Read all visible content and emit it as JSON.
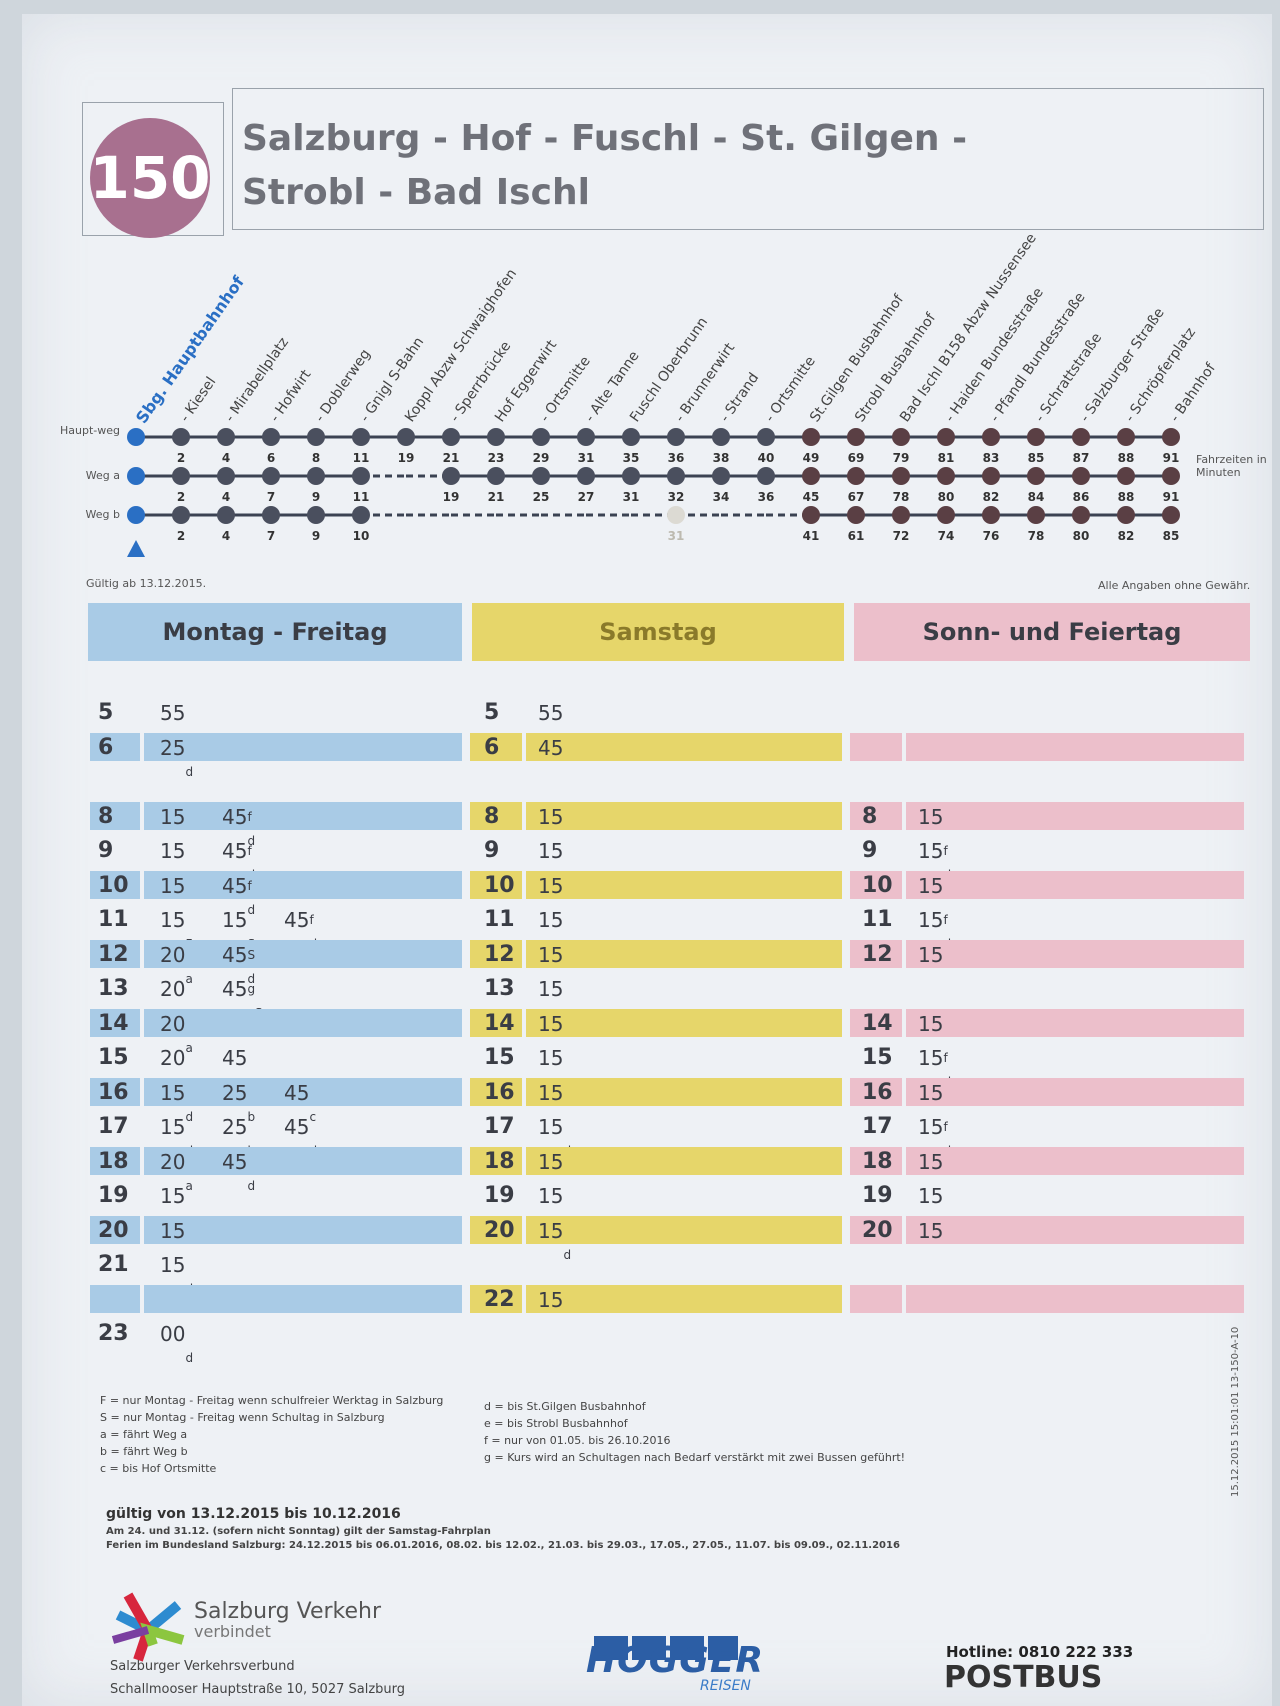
{
  "route_number": "150",
  "title_line1": "Salzburg - Hof - Fuschl - St. Gilgen -",
  "title_line2": "Strobl - Bad Ischl",
  "stops": [
    "Sbg. Hauptbahnhof",
    "- Kiesel",
    "- Mirabellplatz",
    "- Hofwirt",
    "- Doblerweg",
    "- Gnigl S-Bahn",
    "Koppl Abzw Schwaighofen",
    "- Sperrbrücke",
    "Hof Eggerwirt",
    "- Ortsmitte",
    "- Alte Tanne",
    "Fuschl Oberbrunn",
    "- Brunnerwirt",
    "- Strand",
    "- Ortsmitte",
    "St.Gilgen Busbahnhof",
    "Strobl Busbahnhof",
    "Bad Ischl B158 Abzw Nussensee",
    "- Haiden Bundesstraße",
    "- Pfandl Bundesstraße",
    "- Schrattstraße",
    "- Salzburger Straße",
    "- Schröpferplatz",
    "- Bahnhof"
  ],
  "route_rows": [
    {
      "label": "Haupt-weg",
      "times": [
        "",
        "2",
        "4",
        "6",
        "8",
        "11",
        "19",
        "21",
        "23",
        "29",
        "31",
        "35",
        "36",
        "38",
        "40",
        "49",
        "69",
        "79",
        "81",
        "83",
        "85",
        "87",
        "88",
        "91"
      ]
    },
    {
      "label": "Weg a",
      "times": [
        "",
        "2",
        "4",
        "7",
        "9",
        "11",
        "",
        "19",
        "21",
        "25",
        "27",
        "31",
        "32",
        "34",
        "36",
        "45",
        "67",
        "78",
        "80",
        "82",
        "84",
        "86",
        "88",
        "91"
      ]
    },
    {
      "label": "Weg b",
      "times": [
        "",
        "2",
        "4",
        "7",
        "9",
        "10",
        "",
        "",
        "",
        "",
        "",
        "",
        "31",
        "",
        "",
        "41",
        "61",
        "72",
        "74",
        "76",
        "78",
        "80",
        "82",
        "85"
      ]
    }
  ],
  "fahrzeiten_label": "Fahrzeiten in Minuten",
  "gueltig_ab": "Gültig ab 13.12.2015.",
  "ohne_gewaehr": "Alle Angaben ohne Gewähr.",
  "columns": {
    "weekday": "Montag - Freitag",
    "saturday": "Samstag",
    "sunday": "Sonn- und Feiertag"
  },
  "colors": {
    "weekday": "#a9cbe6",
    "saturday": "#e6d66a",
    "sunday": "#ecbfcb",
    "badge": "#a8708f",
    "route_line": "#3b4252",
    "first_stop": "#2a6fc4"
  },
  "weekday_rows": [
    {
      "h": "5",
      "m": [
        {
          "t": "55"
        }
      ]
    },
    {
      "h": "6",
      "m": [
        {
          "t": "25",
          "sub": "d"
        }
      ]
    },
    {
      "h": "",
      "m": []
    },
    {
      "h": "8",
      "m": [
        {
          "t": "15"
        },
        {
          "t": "45",
          "sup": "f",
          "sub": "d"
        }
      ]
    },
    {
      "h": "9",
      "m": [
        {
          "t": "15"
        },
        {
          "t": "45",
          "sup": "f",
          "sub": "d"
        }
      ]
    },
    {
      "h": "10",
      "m": [
        {
          "t": "15"
        },
        {
          "t": "45",
          "sup": "f",
          "sub": "d"
        }
      ]
    },
    {
      "h": "11",
      "m": [
        {
          "t": "15",
          "sub": "F"
        },
        {
          "t": "15",
          "sub": "S"
        },
        {
          "t": "45",
          "sup": "f",
          "sub": "d"
        }
      ]
    },
    {
      "h": "12",
      "m": [
        {
          "t": "20",
          "sub": "a"
        },
        {
          "t": "45",
          "sup": "S",
          "sub": "d"
        }
      ]
    },
    {
      "h": "13",
      "m": [
        {
          "t": "20",
          "sub": "a"
        },
        {
          "t": "45",
          "sup": "g",
          "sub": "eS"
        }
      ]
    },
    {
      "h": "14",
      "m": [
        {
          "t": "20",
          "sub": "a"
        }
      ]
    },
    {
      "h": "15",
      "m": [
        {
          "t": "20",
          "sub": "a"
        },
        {
          "t": "45",
          "sub": "c"
        }
      ]
    },
    {
      "h": "16",
      "m": [
        {
          "t": "15",
          "sub": "d"
        },
        {
          "t": "25",
          "sub": "b"
        },
        {
          "t": "45",
          "sub": "c"
        }
      ]
    },
    {
      "h": "17",
      "m": [
        {
          "t": "15",
          "sub": "d"
        },
        {
          "t": "25",
          "sub": "b"
        },
        {
          "t": "45",
          "sub": "d"
        }
      ]
    },
    {
      "h": "18",
      "m": [
        {
          "t": "20",
          "sub": "a"
        },
        {
          "t": "45",
          "sub": "d"
        }
      ]
    },
    {
      "h": "19",
      "m": [
        {
          "t": "15"
        }
      ]
    },
    {
      "h": "20",
      "m": [
        {
          "t": "15"
        }
      ]
    },
    {
      "h": "21",
      "m": [
        {
          "t": "15",
          "sub": "d"
        }
      ]
    },
    {
      "h": "",
      "m": []
    },
    {
      "h": "23",
      "m": [
        {
          "t": "00",
          "sub": "d"
        }
      ]
    }
  ],
  "saturday_rows": [
    {
      "h": "5",
      "m": [
        {
          "t": "55"
        }
      ]
    },
    {
      "h": "6",
      "m": [
        {
          "t": "45"
        }
      ]
    },
    {
      "h": "",
      "m": []
    },
    {
      "h": "8",
      "m": [
        {
          "t": "15"
        }
      ]
    },
    {
      "h": "9",
      "m": [
        {
          "t": "15"
        }
      ]
    },
    {
      "h": "10",
      "m": [
        {
          "t": "15"
        }
      ]
    },
    {
      "h": "11",
      "m": [
        {
          "t": "15"
        }
      ]
    },
    {
      "h": "12",
      "m": [
        {
          "t": "15"
        }
      ]
    },
    {
      "h": "13",
      "m": [
        {
          "t": "15"
        }
      ]
    },
    {
      "h": "14",
      "m": [
        {
          "t": "15"
        }
      ]
    },
    {
      "h": "15",
      "m": [
        {
          "t": "15"
        }
      ]
    },
    {
      "h": "16",
      "m": [
        {
          "t": "15"
        }
      ]
    },
    {
      "h": "17",
      "m": [
        {
          "t": "15",
          "sub": "d"
        }
      ]
    },
    {
      "h": "18",
      "m": [
        {
          "t": "15"
        }
      ]
    },
    {
      "h": "19",
      "m": [
        {
          "t": "15"
        }
      ]
    },
    {
      "h": "20",
      "m": [
        {
          "t": "15",
          "sub": "d"
        }
      ]
    },
    {
      "h": "",
      "m": []
    },
    {
      "h": "22",
      "m": [
        {
          "t": "15"
        }
      ]
    },
    {
      "h": "",
      "m": []
    }
  ],
  "sunday_rows": [
    {
      "h": "",
      "m": []
    },
    {
      "h": "",
      "m": []
    },
    {
      "h": "",
      "m": []
    },
    {
      "h": "8",
      "m": [
        {
          "t": "15"
        }
      ]
    },
    {
      "h": "9",
      "m": [
        {
          "t": "15",
          "sup": "f",
          "sub": "d"
        }
      ]
    },
    {
      "h": "10",
      "m": [
        {
          "t": "15"
        }
      ]
    },
    {
      "h": "11",
      "m": [
        {
          "t": "15",
          "sup": "f",
          "sub": "d"
        }
      ]
    },
    {
      "h": "12",
      "m": [
        {
          "t": "15"
        }
      ]
    },
    {
      "h": "",
      "m": []
    },
    {
      "h": "14",
      "m": [
        {
          "t": "15"
        }
      ]
    },
    {
      "h": "15",
      "m": [
        {
          "t": "15",
          "sup": "f",
          "sub": "d"
        }
      ]
    },
    {
      "h": "16",
      "m": [
        {
          "t": "15"
        }
      ]
    },
    {
      "h": "17",
      "m": [
        {
          "t": "15",
          "sup": "f",
          "sub": "d"
        }
      ]
    },
    {
      "h": "18",
      "m": [
        {
          "t": "15"
        }
      ]
    },
    {
      "h": "19",
      "m": [
        {
          "t": "15"
        }
      ]
    },
    {
      "h": "20",
      "m": [
        {
          "t": "15"
        }
      ]
    },
    {
      "h": "",
      "m": []
    },
    {
      "h": "",
      "m": []
    },
    {
      "h": "",
      "m": []
    }
  ],
  "legend_left": [
    "F = nur Montag - Freitag wenn schulfreier Werktag in Salzburg",
    "S = nur Montag - Freitag wenn Schultag in Salzburg",
    "a = fährt Weg a",
    "b = fährt Weg b",
    "c = bis Hof Ortsmitte"
  ],
  "legend_right": [
    "d = bis St.Gilgen Busbahnhof",
    "e = bis Strobl Busbahnhof",
    "f = nur von 01.05. bis 26.10.2016",
    "g = Kurs wird an Schultagen nach Bedarf verstärkt mit zwei Bussen geführt!"
  ],
  "validity": "gültig von 13.12.2015 bis 10.12.2016",
  "validity_note1": "Am 24. und 31.12. (sofern nicht Sonntag) gilt der Samstag-Fahrplan",
  "validity_note2": "Ferien im Bundesland Salzburg: 24.12.2015 bis 06.01.2016, 08.02. bis 12.02., 21.03. bis 29.03., 17.05., 27.05., 11.07. bis 09.09., 02.11.2016",
  "svv_name": "Salzburg Verkehr",
  "svv_tagline": "verbindet",
  "svv_org": "Salzburger Verkehrsverbund",
  "svv_address": "Schallmooser Hauptstraße 10, 5027 Salzburg",
  "hogger_name": "HOGGER",
  "hogger_sub": "REISEN",
  "hotline": "Hotline: 0810 222 333",
  "postbus": "POSTBUS",
  "print_code": "15.12.2015 15:01:01   13-150-A-10"
}
